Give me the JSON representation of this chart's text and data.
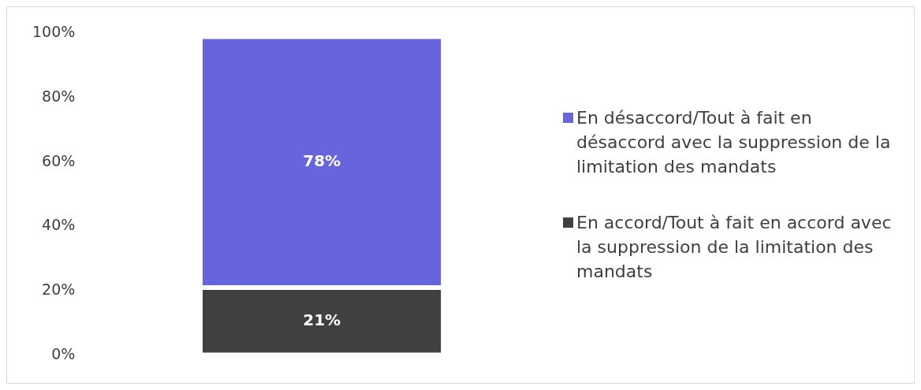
{
  "chart_data": {
    "type": "bar",
    "stacked": true,
    "categories": [
      null
    ],
    "series": [
      {
        "name": "En accord/Tout à fait en accord avec la suppression de la limitation des mandats",
        "color": "#404040",
        "values": [
          21
        ],
        "value_labels": [
          "21%"
        ]
      },
      {
        "name": "En désaccord/Tout à fait en désaccord avec la suppression de la limitation des mandats",
        "color": "#6665db",
        "values": [
          78
        ],
        "value_labels": [
          "78%"
        ]
      }
    ],
    "ylim": [
      0,
      100
    ],
    "yticks": [
      {
        "value": 0,
        "label": "0%"
      },
      {
        "value": 20,
        "label": "20%"
      },
      {
        "value": 40,
        "label": "40%"
      },
      {
        "value": 60,
        "label": "60%"
      },
      {
        "value": 80,
        "label": "80%"
      },
      {
        "value": 100,
        "label": "100%"
      }
    ],
    "grid": false,
    "legend": "right"
  }
}
